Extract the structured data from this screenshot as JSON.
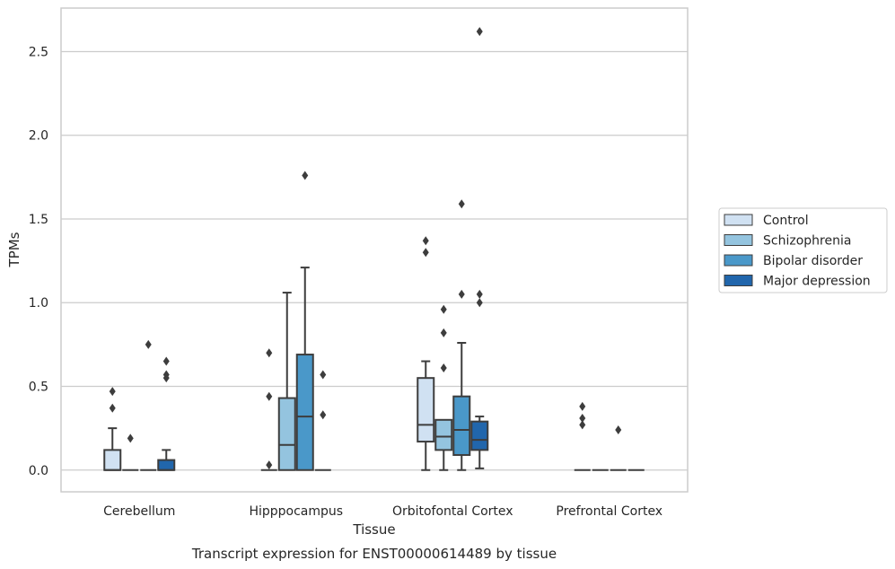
{
  "chart_data": {
    "type": "box",
    "title": "Transcript expression for ENST00000614489 by tissue",
    "xlabel": "Tissue",
    "ylabel": "TPMs",
    "ylim": [
      -0.13,
      2.76
    ],
    "yticks": [
      "0.0",
      "0.5",
      "1.0",
      "1.5",
      "2.0",
      "2.5"
    ],
    "grid": true,
    "legend_position": "right",
    "categories": [
      "Cerebellum",
      "Hipppocampus",
      "Orbitofontal Cortex",
      "Prefrontal Cortex"
    ],
    "series": [
      {
        "name": "Control",
        "color": "#d0e1f2",
        "boxes": [
          {
            "q1": 0,
            "median": 0,
            "q3": 0.12,
            "whisker_low": 0,
            "whisker_high": 0.25,
            "outliers": [
              0.37,
              0.47
            ]
          },
          {
            "q1": 0,
            "median": 0,
            "q3": 0,
            "whisker_low": 0,
            "whisker_high": 0,
            "outliers": [
              0.03,
              0.44,
              0.7
            ]
          },
          {
            "q1": 0.17,
            "median": 0.27,
            "q3": 0.55,
            "whisker_low": 0,
            "whisker_high": 0.65,
            "outliers": [
              1.3,
              1.37
            ]
          },
          {
            "q1": 0,
            "median": 0,
            "q3": 0,
            "whisker_low": 0,
            "whisker_high": 0,
            "outliers": [
              0.27,
              0.31,
              0.38
            ]
          }
        ]
      },
      {
        "name": "Schizophrenia",
        "color": "#94c4df",
        "boxes": [
          {
            "q1": 0,
            "median": 0,
            "q3": 0,
            "whisker_low": 0,
            "whisker_high": 0,
            "outliers": [
              0.19
            ]
          },
          {
            "q1": 0,
            "median": 0.15,
            "q3": 0.43,
            "whisker_low": 0,
            "whisker_high": 1.06,
            "outliers": []
          },
          {
            "q1": 0.12,
            "median": 0.2,
            "q3": 0.3,
            "whisker_low": 0,
            "whisker_high": 0.3,
            "outliers": [
              0.61,
              0.82,
              0.96
            ]
          },
          {
            "q1": 0,
            "median": 0,
            "q3": 0,
            "whisker_low": 0,
            "whisker_high": 0,
            "outliers": []
          }
        ]
      },
      {
        "name": "Bipolar disorder",
        "color": "#4a98c9",
        "boxes": [
          {
            "q1": 0,
            "median": 0,
            "q3": 0,
            "whisker_low": 0,
            "whisker_high": 0,
            "outliers": [
              0.75
            ]
          },
          {
            "q1": 0,
            "median": 0.32,
            "q3": 0.69,
            "whisker_low": 0,
            "whisker_high": 1.21,
            "outliers": [
              1.76
            ]
          },
          {
            "q1": 0.09,
            "median": 0.24,
            "q3": 0.44,
            "whisker_low": 0,
            "whisker_high": 0.76,
            "outliers": [
              1.05,
              1.59
            ]
          },
          {
            "q1": 0,
            "median": 0,
            "q3": 0,
            "whisker_low": 0,
            "whisker_high": 0,
            "outliers": [
              0.24
            ]
          }
        ]
      },
      {
        "name": "Major depression",
        "color": "#2166ac",
        "boxes": [
          {
            "q1": 0,
            "median": 0,
            "q3": 0.06,
            "whisker_low": 0,
            "whisker_high": 0.12,
            "outliers": [
              0.55,
              0.57,
              0.65
            ]
          },
          {
            "q1": 0,
            "median": 0,
            "q3": 0,
            "whisker_low": 0,
            "whisker_high": 0,
            "outliers": [
              0.33,
              0.57
            ]
          },
          {
            "q1": 0.12,
            "median": 0.18,
            "q3": 0.29,
            "whisker_low": 0.01,
            "whisker_high": 0.32,
            "outliers": [
              1.0,
              1.05,
              2.62
            ]
          },
          {
            "q1": 0,
            "median": 0,
            "q3": 0,
            "whisker_low": 0,
            "whisker_high": 0,
            "outliers": []
          }
        ]
      }
    ]
  }
}
